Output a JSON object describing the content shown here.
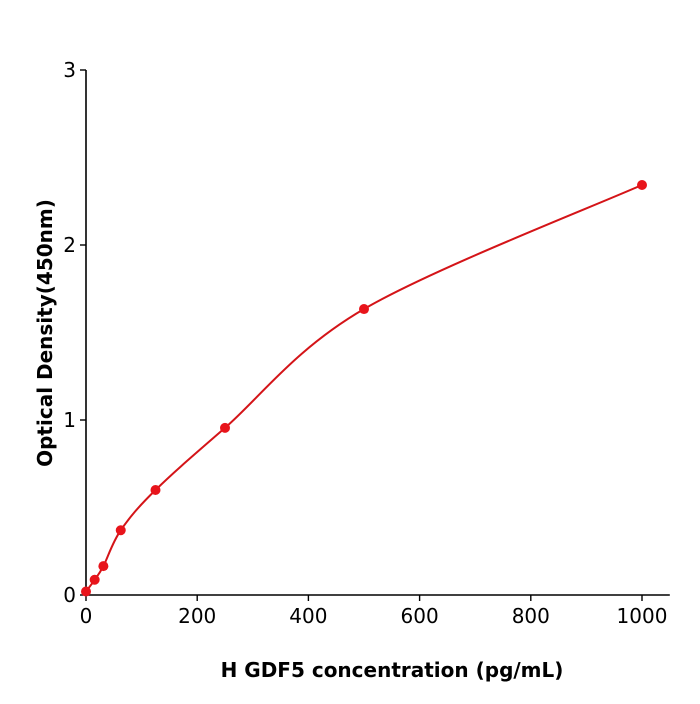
{
  "chart_data": {
    "type": "scatter",
    "title": "",
    "xlabel": "H  GDF5 concentration (pg/mL)",
    "ylabel": "Optical Density(450nm)",
    "xlim": [
      0,
      1050
    ],
    "ylim": [
      0,
      3
    ],
    "xticks": [
      0,
      200,
      400,
      600,
      800,
      1000
    ],
    "yticks": [
      0,
      1,
      2,
      3
    ],
    "grid": false,
    "color": "#e8141b",
    "curve_color": "#d41418",
    "points": [
      {
        "x": 0,
        "y": 0.02
      },
      {
        "x": 15.6,
        "y": 0.087
      },
      {
        "x": 31.25,
        "y": 0.165
      },
      {
        "x": 62.5,
        "y": 0.37
      },
      {
        "x": 125,
        "y": 0.6
      },
      {
        "x": 250,
        "y": 0.955
      },
      {
        "x": 500,
        "y": 1.634
      },
      {
        "x": 1000,
        "y": 2.343
      }
    ],
    "fit_curve": true
  }
}
